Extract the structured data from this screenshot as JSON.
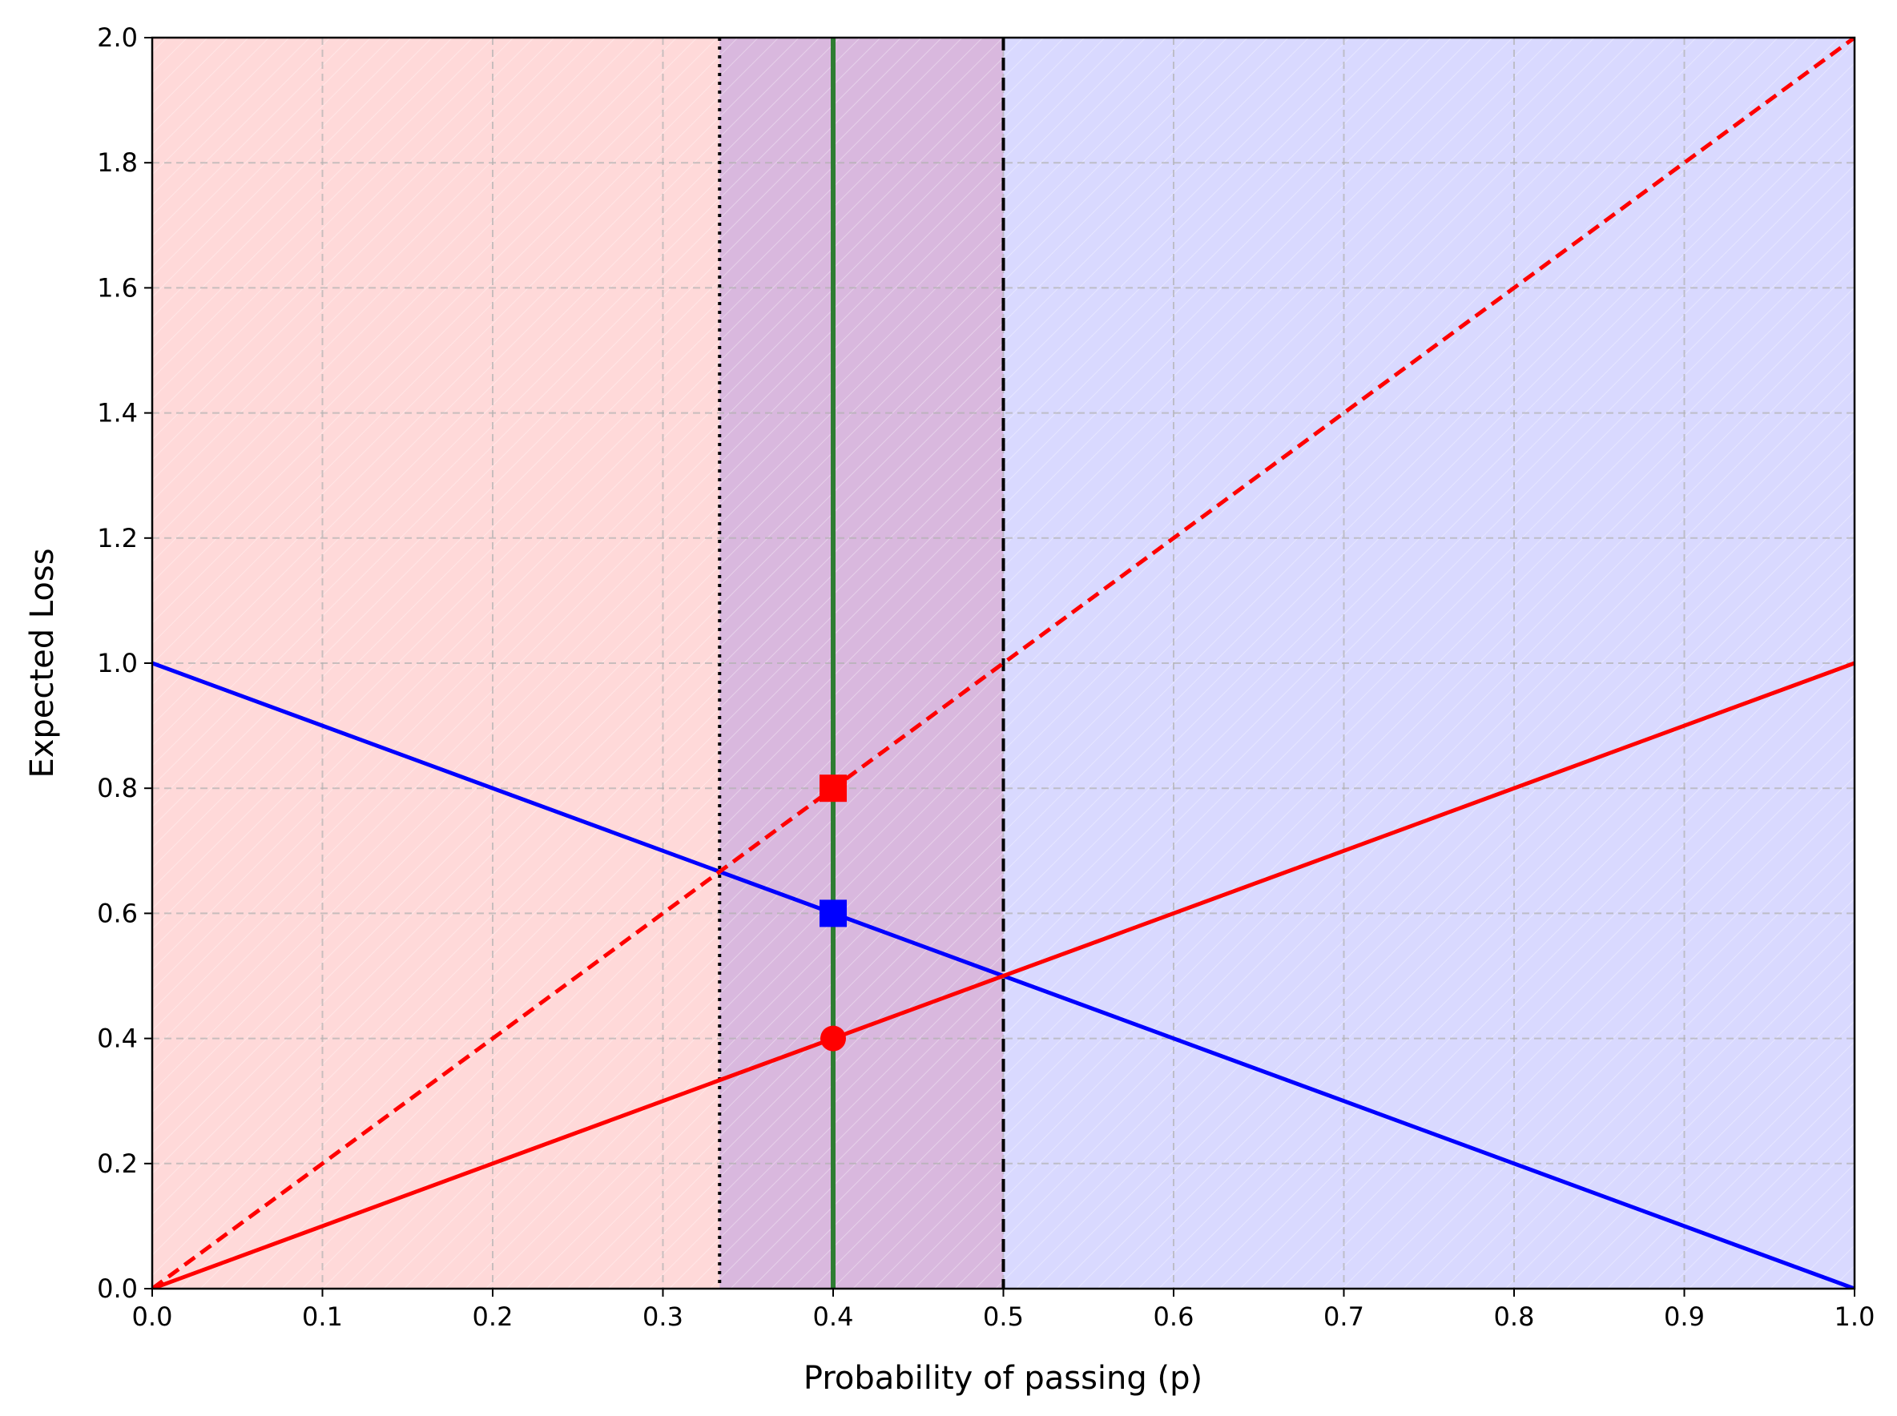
{
  "chart_data": {
    "type": "line",
    "title": "",
    "xlabel": "Probability of passing (p)",
    "ylabel": "Expected Loss",
    "xlim": [
      0.0,
      1.0
    ],
    "ylim": [
      0.0,
      2.0
    ],
    "x_ticks": [
      0.0,
      0.1,
      0.2,
      0.3,
      0.4,
      0.5,
      0.6,
      0.7,
      0.8,
      0.9,
      1.0
    ],
    "y_ticks": [
      0.0,
      0.2,
      0.4,
      0.6,
      0.8,
      1.0,
      1.2,
      1.4,
      1.6,
      1.8,
      2.0
    ],
    "x_tick_labels": [
      "0.0",
      "0.1",
      "0.2",
      "0.3",
      "0.4",
      "0.5",
      "0.6",
      "0.7",
      "0.8",
      "0.9",
      "1.0"
    ],
    "y_tick_labels": [
      "0.0",
      "0.2",
      "0.4",
      "0.6",
      "0.8",
      "1.0",
      "1.2",
      "1.4",
      "1.6",
      "1.8",
      "2.0"
    ],
    "grid": true,
    "shaded_regions": [
      {
        "x": [
          0.0,
          0.5
        ],
        "color": "#ff0000",
        "opacity": 0.15
      },
      {
        "x": [
          0.3333,
          1.0
        ],
        "color": "#0000ff",
        "opacity": 0.15
      }
    ],
    "series": [
      {
        "x": [
          0.0,
          1.0
        ],
        "y": [
          1.0,
          0.0
        ],
        "color": "#0000ff",
        "style": "solid"
      },
      {
        "x": [
          0.0,
          1.0
        ],
        "y": [
          0.0,
          1.0
        ],
        "color": "#ff0000",
        "style": "solid"
      },
      {
        "x": [
          0.0,
          1.0
        ],
        "y": [
          0.0,
          2.0
        ],
        "color": "#ff0000",
        "style": "dashed"
      }
    ],
    "vertical_lines": [
      {
        "x": 0.3333,
        "color": "#000000",
        "style": "dotted"
      },
      {
        "x": 0.4,
        "color": "#2e7d32",
        "style": "solid"
      },
      {
        "x": 0.5,
        "color": "#000000",
        "style": "dashed"
      }
    ],
    "markers": [
      {
        "x": 0.4,
        "y": 0.8,
        "shape": "square",
        "color": "#ff0000"
      },
      {
        "x": 0.4,
        "y": 0.6,
        "shape": "square",
        "color": "#0000ff"
      },
      {
        "x": 0.4,
        "y": 0.4,
        "shape": "circle",
        "color": "#ff0000"
      }
    ]
  }
}
